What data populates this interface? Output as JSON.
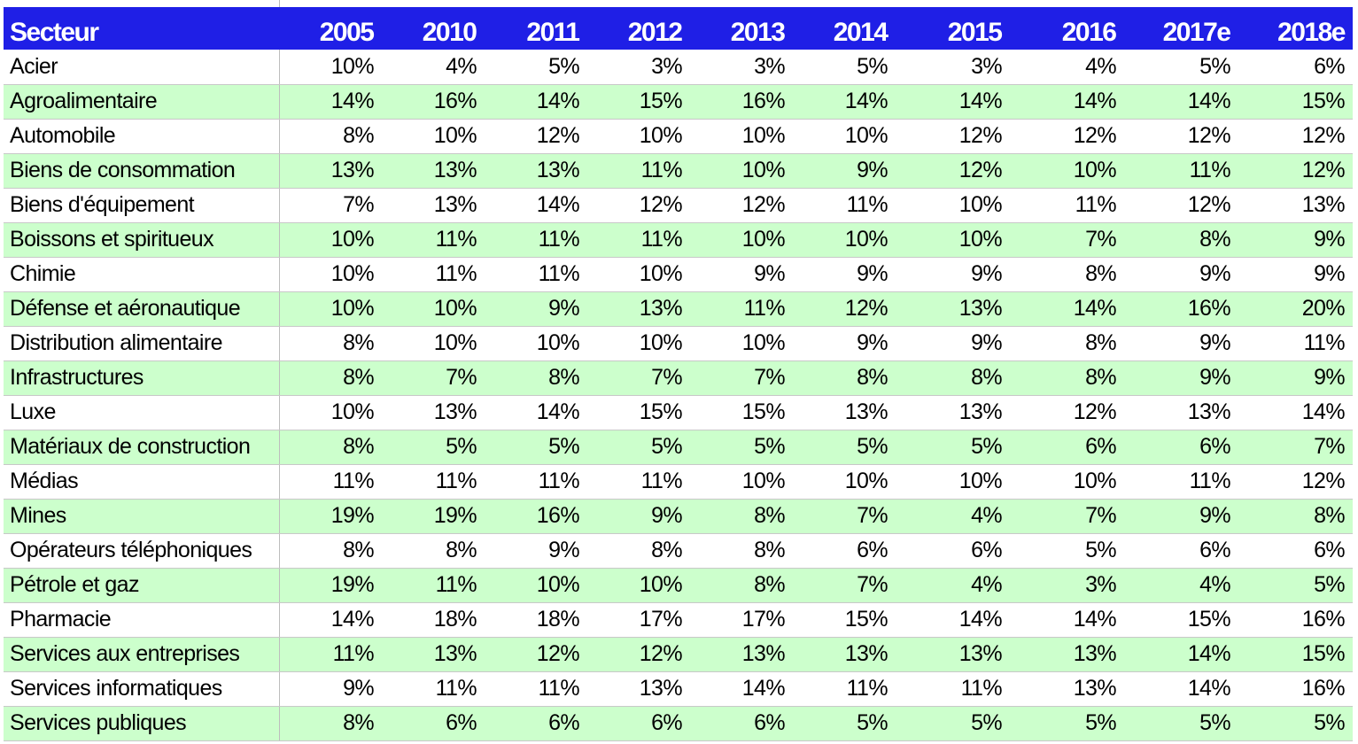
{
  "chart_data": {
    "type": "table",
    "header_label": "Secteur",
    "columns": [
      "2005",
      "2010",
      "2011",
      "2012",
      "2013",
      "2014",
      "2015",
      "2016",
      "2017e",
      "2018e"
    ],
    "rows": [
      {
        "sector": "Acier",
        "values": [
          "10%",
          "4%",
          "5%",
          "3%",
          "3%",
          "5%",
          "3%",
          "4%",
          "5%",
          "6%"
        ]
      },
      {
        "sector": "Agroalimentaire",
        "values": [
          "14%",
          "16%",
          "14%",
          "15%",
          "16%",
          "14%",
          "14%",
          "14%",
          "14%",
          "15%"
        ]
      },
      {
        "sector": "Automobile",
        "values": [
          "8%",
          "10%",
          "12%",
          "10%",
          "10%",
          "10%",
          "12%",
          "12%",
          "12%",
          "12%"
        ]
      },
      {
        "sector": "Biens de consommation",
        "values": [
          "13%",
          "13%",
          "13%",
          "11%",
          "10%",
          "9%",
          "12%",
          "10%",
          "11%",
          "12%"
        ]
      },
      {
        "sector": "Biens d'équipement",
        "values": [
          "7%",
          "13%",
          "14%",
          "12%",
          "12%",
          "11%",
          "10%",
          "11%",
          "12%",
          "13%"
        ]
      },
      {
        "sector": "Boissons et spiritueux",
        "values": [
          "10%",
          "11%",
          "11%",
          "11%",
          "10%",
          "10%",
          "10%",
          "7%",
          "8%",
          "9%"
        ]
      },
      {
        "sector": "Chimie",
        "values": [
          "10%",
          "11%",
          "11%",
          "10%",
          "9%",
          "9%",
          "9%",
          "8%",
          "9%",
          "9%"
        ]
      },
      {
        "sector": "Défense et aéronautique",
        "values": [
          "10%",
          "10%",
          "9%",
          "13%",
          "11%",
          "12%",
          "13%",
          "14%",
          "16%",
          "20%"
        ]
      },
      {
        "sector": "Distribution alimentaire",
        "values": [
          "8%",
          "10%",
          "10%",
          "10%",
          "10%",
          "9%",
          "9%",
          "8%",
          "9%",
          "11%"
        ]
      },
      {
        "sector": "Infrastructures",
        "values": [
          "8%",
          "7%",
          "8%",
          "7%",
          "7%",
          "8%",
          "8%",
          "8%",
          "9%",
          "9%"
        ]
      },
      {
        "sector": "Luxe",
        "values": [
          "10%",
          "13%",
          "14%",
          "15%",
          "15%",
          "13%",
          "13%",
          "12%",
          "13%",
          "14%"
        ]
      },
      {
        "sector": "Matériaux de construction",
        "values": [
          "8%",
          "5%",
          "5%",
          "5%",
          "5%",
          "5%",
          "5%",
          "6%",
          "6%",
          "7%"
        ]
      },
      {
        "sector": "Médias",
        "values": [
          "11%",
          "11%",
          "11%",
          "11%",
          "10%",
          "10%",
          "10%",
          "10%",
          "11%",
          "12%"
        ]
      },
      {
        "sector": "Mines",
        "values": [
          "19%",
          "19%",
          "16%",
          "9%",
          "8%",
          "7%",
          "4%",
          "7%",
          "9%",
          "8%"
        ]
      },
      {
        "sector": "Opérateurs téléphoniques",
        "values": [
          "8%",
          "8%",
          "9%",
          "8%",
          "8%",
          "6%",
          "6%",
          "5%",
          "6%",
          "6%"
        ]
      },
      {
        "sector": "Pétrole et gaz",
        "values": [
          "19%",
          "11%",
          "10%",
          "10%",
          "8%",
          "7%",
          "4%",
          "3%",
          "4%",
          "5%"
        ]
      },
      {
        "sector": "Pharmacie",
        "values": [
          "14%",
          "18%",
          "18%",
          "17%",
          "17%",
          "15%",
          "14%",
          "14%",
          "15%",
          "16%"
        ]
      },
      {
        "sector": "Services aux entreprises",
        "values": [
          "11%",
          "13%",
          "12%",
          "12%",
          "13%",
          "13%",
          "13%",
          "13%",
          "14%",
          "15%"
        ]
      },
      {
        "sector": "Services informatiques",
        "values": [
          "9%",
          "11%",
          "11%",
          "13%",
          "14%",
          "11%",
          "11%",
          "13%",
          "14%",
          "16%"
        ]
      },
      {
        "sector": "Services publiques",
        "values": [
          "8%",
          "6%",
          "6%",
          "6%",
          "6%",
          "5%",
          "5%",
          "5%",
          "5%",
          "5%"
        ]
      }
    ]
  },
  "colors": {
    "header_background": "#1f1fe6",
    "header_text": "#ffffff",
    "alternate_row_background": "#ccffcc",
    "row_background": "#ffffff",
    "gridline": "#c8c8c8"
  }
}
